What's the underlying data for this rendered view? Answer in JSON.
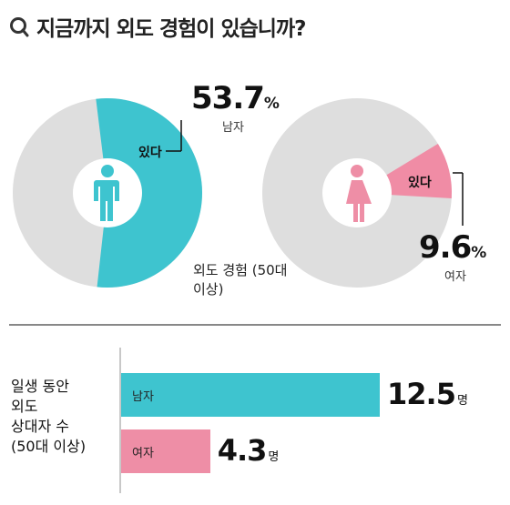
{
  "question": {
    "icon": "magnifier-icon",
    "mark": "Q",
    "text": "지금까지 외도 경험이 있습니까?"
  },
  "colors": {
    "male": "#3ec4cf",
    "female": "#ee8ea6",
    "pie_base": "#dedede",
    "female_slice": "#f08ca5"
  },
  "chart_data": [
    {
      "type": "pie",
      "caption": "외도 경험 (50대 이상)",
      "pies": [
        {
          "gender": "남자",
          "slice_label": "있다",
          "value": 53.7,
          "unit": "%",
          "icon": "male-person-icon"
        },
        {
          "gender": "여자",
          "slice_label": "있다",
          "value": 9.6,
          "unit": "%",
          "icon": "female-person-icon"
        }
      ]
    },
    {
      "type": "bar",
      "label_lines": [
        "일생 동안",
        "외도",
        "상대자 수",
        "(50대 이상)"
      ],
      "categories": [
        "남자",
        "여자"
      ],
      "values": [
        12.5,
        4.3
      ],
      "value_labels": [
        "12.5",
        "4.3"
      ],
      "unit": "명"
    }
  ]
}
